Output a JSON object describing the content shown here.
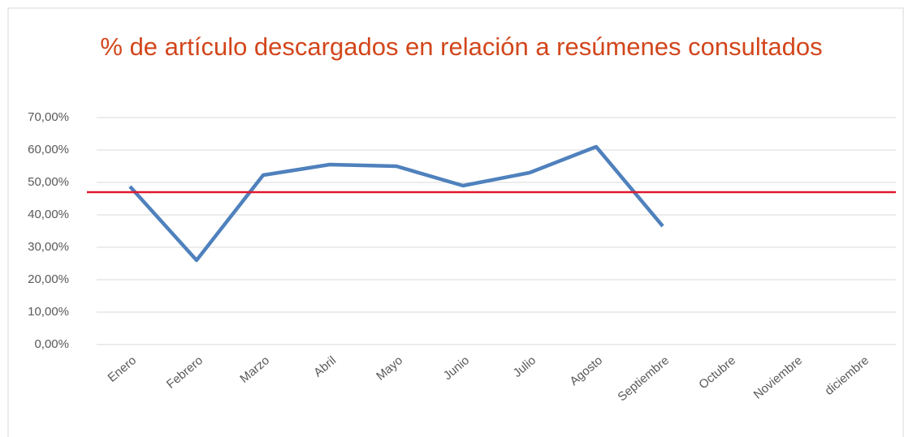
{
  "chart_data": {
    "type": "line",
    "title": "% de artículo descargados en relación a resúmenes consultados",
    "categories": [
      "Enero",
      "Febrero",
      "Marzo",
      "Abril",
      "Mayo",
      "Junio",
      "Julio",
      "Agosto",
      "Septiembre",
      "Octubre",
      "Noviembre",
      "diciembre"
    ],
    "series": [
      {
        "color": "#4f81bd",
        "values": [
          48.75,
          26,
          52.25,
          55.5,
          55,
          49,
          53,
          61,
          36.5,
          null,
          null,
          null
        ]
      }
    ],
    "reference_line": {
      "value": 47,
      "color": "#e0182d"
    },
    "ylim": [
      0,
      70
    ],
    "yticks": [
      {
        "value": 0,
        "label": "0,00%"
      },
      {
        "value": 10,
        "label": "10,00%"
      },
      {
        "value": 20,
        "label": "20,00%"
      },
      {
        "value": 30,
        "label": "30,00%"
      },
      {
        "value": 40,
        "label": "40,00%"
      },
      {
        "value": 50,
        "label": "50,00%"
      },
      {
        "value": 60,
        "label": "60,00%"
      },
      {
        "value": 70,
        "label": "70,00%"
      }
    ],
    "grid": true
  }
}
